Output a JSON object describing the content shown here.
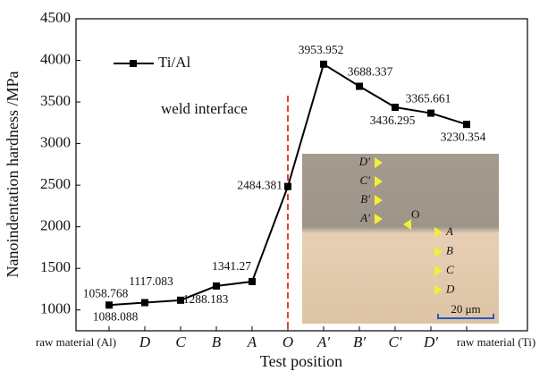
{
  "chart_data": {
    "type": "line",
    "x_label": "Test position",
    "y_label": "Nanoindentation hardness /MPa",
    "categories": [
      "raw material (Al)",
      "D",
      "C",
      "B",
      "A",
      "O",
      "A′",
      "B′",
      "C′",
      "D′",
      "raw material (Ti)"
    ],
    "series": [
      {
        "name": "Ti/Al",
        "color": "#000000",
        "values": [
          1058.768,
          1088.088,
          1117.083,
          1288.183,
          1341.27,
          2484.381,
          3953.952,
          3688.337,
          3436.295,
          3365.661,
          3230.354
        ]
      }
    ],
    "ylim": [
      750,
      4500
    ],
    "yticks": [
      1000,
      1500,
      2000,
      2500,
      3000,
      3500,
      4000,
      4500
    ],
    "legend": "upper left",
    "annotations": [
      "weld interface"
    ],
    "interface_color": "#e8412c",
    "inset": {
      "left_labels": [
        "D′",
        "C′",
        "B′",
        "A′"
      ],
      "center_label": "O",
      "right_labels": [
        "A",
        "B",
        "C",
        "D"
      ],
      "scale_bar": "20 μm"
    }
  }
}
